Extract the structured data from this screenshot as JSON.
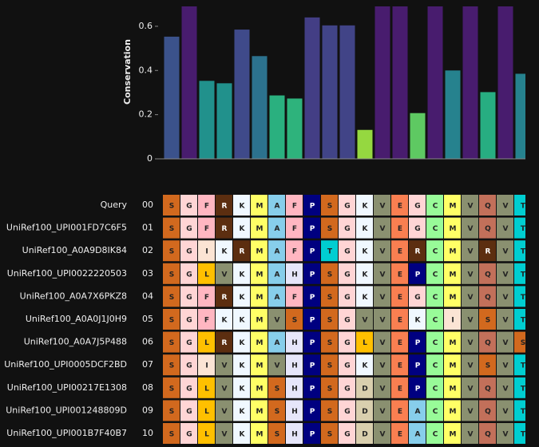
{
  "chart_data": {
    "type": "bar",
    "ylabel": "Conservation",
    "categories": [
      null,
      null,
      null,
      null,
      null,
      null,
      null,
      null,
      null,
      null,
      null,
      null,
      null,
      null,
      null,
      null,
      null,
      null,
      null,
      null,
      null
    ],
    "values": [
      0.553,
      0.69,
      0.353,
      0.342,
      0.585,
      0.465,
      0.287,
      0.273,
      0.64,
      0.604,
      0.604,
      0.131,
      0.69,
      0.69,
      0.207,
      0.69,
      0.4,
      0.69,
      0.302,
      0.69,
      0.385
    ],
    "colors": [
      "#3b528b",
      "#481c6e",
      "#21918c",
      "#21918c",
      "#3f4a8a",
      "#2c728e",
      "#2ab07f",
      "#2eb37c",
      "#433e85",
      "#414487",
      "#414487",
      "#95d840",
      "#481c6e",
      "#481c6e",
      "#5ec962",
      "#481c6e",
      "#26828e",
      "#481c6e",
      "#27ad81",
      "#481c6e",
      "#26828e"
    ],
    "ylim": [
      0,
      0.69
    ],
    "yticks": [
      0,
      0.2,
      0.4,
      0.6
    ]
  },
  "alignment": {
    "residue_colors": {
      "S": "#d2691e",
      "G": "#ffd5d5",
      "F": "#ffb6c1",
      "R": "#5c2e10",
      "K": "#f0f8ff",
      "M": "#ffff66",
      "A": "#87ceeb",
      "P": "#000080",
      "V": "#8a9070",
      "E": "#f97f51",
      "C": "#98fb98",
      "Q": "#c2705a",
      "I": "#fbe4d4",
      "L": "#ffc000",
      "H": "#e6e6fa",
      "T": "#00ced1",
      "D": "#d9cfae"
    },
    "rows": [
      {
        "name": "Query",
        "index": "00",
        "residues": [
          "S",
          "G",
          "F",
          "R",
          "K",
          "M",
          "A",
          "F",
          "P",
          "S",
          "G",
          "K",
          "V",
          "E",
          "G",
          "C",
          "M",
          "V",
          "Q",
          "V",
          "T"
        ]
      },
      {
        "name": "UniRef100_UPI001FD7C6F5",
        "index": "01",
        "residues": [
          "S",
          "G",
          "F",
          "R",
          "K",
          "M",
          "A",
          "F",
          "P",
          "S",
          "G",
          "K",
          "V",
          "E",
          "G",
          "C",
          "M",
          "V",
          "Q",
          "V",
          "T"
        ]
      },
      {
        "name": "UniRef100_A0A9D8IK84",
        "index": "02",
        "residues": [
          "S",
          "G",
          "I",
          "K",
          "R",
          "M",
          "A",
          "F",
          "P",
          "T",
          "G",
          "K",
          "V",
          "E",
          "R",
          "C",
          "M",
          "V",
          "R",
          "V",
          "T"
        ]
      },
      {
        "name": "UniRef100_UPI0022220503",
        "index": "03",
        "residues": [
          "S",
          "G",
          "L",
          "V",
          "K",
          "M",
          "A",
          "H",
          "P",
          "S",
          "G",
          "K",
          "V",
          "E",
          "P",
          "C",
          "M",
          "V",
          "Q",
          "V",
          "T"
        ]
      },
      {
        "name": "UniRef100_A0A7X6PKZ8",
        "index": "04",
        "residues": [
          "S",
          "G",
          "F",
          "R",
          "K",
          "M",
          "A",
          "F",
          "P",
          "S",
          "G",
          "K",
          "V",
          "E",
          "G",
          "C",
          "M",
          "V",
          "Q",
          "V",
          "T"
        ]
      },
      {
        "name": "UniRef100_A0A0J1J0H9",
        "index": "05",
        "residues": [
          "S",
          "G",
          "F",
          "K",
          "K",
          "M",
          "V",
          "S",
          "P",
          "S",
          "G",
          "V",
          "V",
          "E",
          "K",
          "C",
          "I",
          "V",
          "S",
          "V",
          "T"
        ]
      },
      {
        "name": "UniRef100_A0A7J5P488",
        "index": "06",
        "residues": [
          "S",
          "G",
          "L",
          "R",
          "K",
          "M",
          "A",
          "H",
          "P",
          "S",
          "G",
          "L",
          "V",
          "E",
          "P",
          "C",
          "M",
          "V",
          "Q",
          "V",
          "S"
        ]
      },
      {
        "name": "UniRef100_UPI0005DCF2BD",
        "index": "07",
        "residues": [
          "S",
          "G",
          "I",
          "V",
          "K",
          "M",
          "V",
          "H",
          "P",
          "S",
          "G",
          "K",
          "V",
          "E",
          "P",
          "C",
          "M",
          "V",
          "S",
          "V",
          "T"
        ]
      },
      {
        "name": "UniRef100_UPI00217E1308",
        "index": "08",
        "residues": [
          "S",
          "G",
          "L",
          "V",
          "K",
          "M",
          "S",
          "H",
          "P",
          "S",
          "G",
          "D",
          "V",
          "E",
          "P",
          "C",
          "M",
          "V",
          "Q",
          "V",
          "T"
        ]
      },
      {
        "name": "UniRef100_UPI001248809D",
        "index": "09",
        "residues": [
          "S",
          "G",
          "L",
          "V",
          "K",
          "M",
          "S",
          "H",
          "P",
          "S",
          "G",
          "D",
          "V",
          "E",
          "A",
          "C",
          "M",
          "V",
          "Q",
          "V",
          "T"
        ]
      },
      {
        "name": "UniRef100_UPI001B7F40B7",
        "index": "10",
        "residues": [
          "S",
          "G",
          "L",
          "V",
          "K",
          "M",
          "S",
          "H",
          "P",
          "S",
          "G",
          "D",
          "V",
          "E",
          "A",
          "C",
          "M",
          "V",
          "Q",
          "V",
          "T"
        ]
      }
    ]
  }
}
